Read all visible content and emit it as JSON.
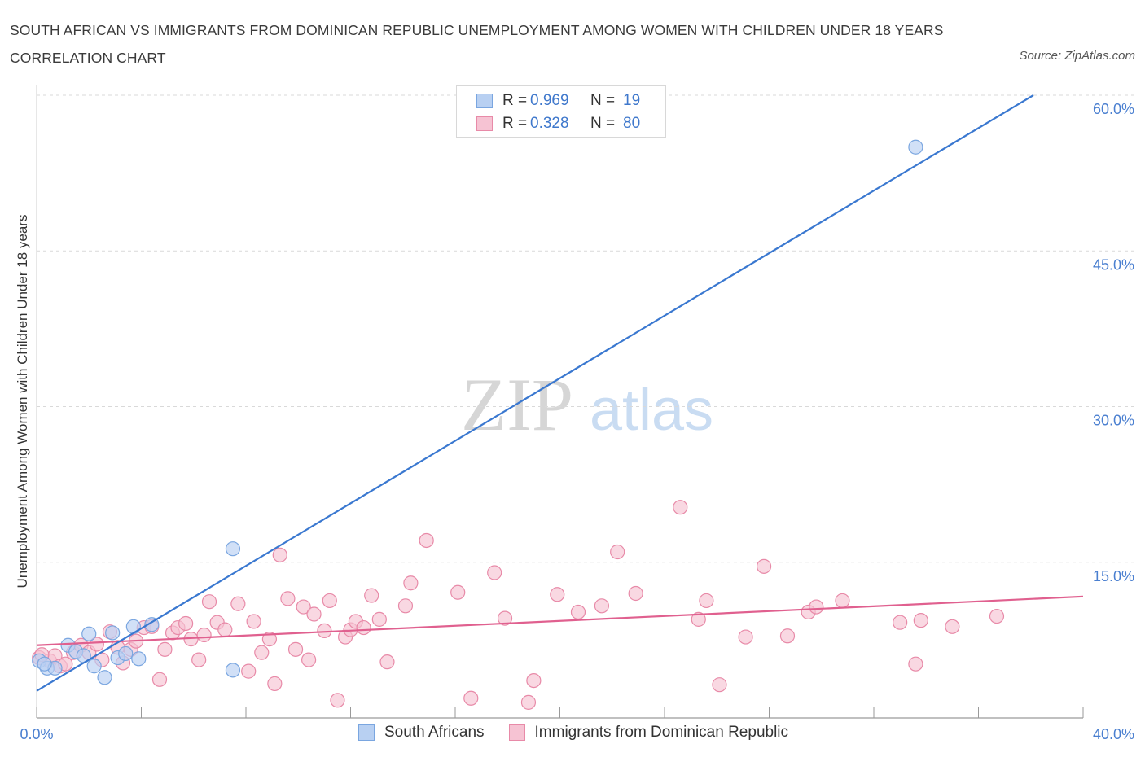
{
  "title": "SOUTH AFRICAN VS IMMIGRANTS FROM DOMINICAN REPUBLIC UNEMPLOYMENT AMONG WOMEN WITH CHILDREN UNDER 18 YEARS CORRELATION CHART",
  "source": "Source: ZipAtlas.com",
  "watermark": {
    "zip": "ZIP",
    "atlas": "atlas"
  },
  "legend": {
    "rows": [
      {
        "r_label": "R =",
        "r_value": "0.969",
        "n_label": "N =",
        "n_value": "19"
      },
      {
        "r_label": "R =",
        "r_value": "0.328",
        "n_label": "N =",
        "n_value": "80"
      }
    ]
  },
  "colors": {
    "blue_fill": "#b8d0f2",
    "blue_stroke": "#7aa6e0",
    "blue_line": "#3a78d0",
    "pink_fill": "#f6c3d3",
    "pink_stroke": "#e88aa8",
    "pink_line": "#e0608f",
    "grid": "#d9d9d9",
    "axis_text": "#4a7fd0"
  },
  "chart_data": {
    "type": "scatter",
    "title": "SOUTH AFRICAN VS IMMIGRANTS FROM DOMINICAN REPUBLIC UNEMPLOYMENT AMONG WOMEN WITH CHILDREN UNDER 18 YEARS CORRELATION CHART",
    "xlabel": "",
    "ylabel": "Unemployment Among Women with Children Under 18 years",
    "xlim": [
      0,
      40
    ],
    "ylim": [
      0,
      60
    ],
    "x_tick_labels": [
      "0.0%",
      "40.0%"
    ],
    "y_tick_labels": [
      "15.0%",
      "30.0%",
      "45.0%",
      "60.0%"
    ],
    "y_ticks": [
      15,
      30,
      45,
      60
    ],
    "x_ticks": [
      0,
      4,
      8,
      12,
      16,
      20,
      24,
      28,
      32,
      36,
      40
    ],
    "grid": true,
    "legend_position": "top-center",
    "series": [
      {
        "name": "South Africans",
        "color": "#b8d0f2",
        "points": [
          [
            0.1,
            5.5
          ],
          [
            0.4,
            4.8
          ],
          [
            0.7,
            4.8
          ],
          [
            1.2,
            7.0
          ],
          [
            1.5,
            6.4
          ],
          [
            1.8,
            6.0
          ],
          [
            2.0,
            8.1
          ],
          [
            2.2,
            5.0
          ],
          [
            2.6,
            3.9
          ],
          [
            2.9,
            8.2
          ],
          [
            3.1,
            5.8
          ],
          [
            3.4,
            6.2
          ],
          [
            3.7,
            8.8
          ],
          [
            3.9,
            5.7
          ],
          [
            4.4,
            9.0
          ],
          [
            7.5,
            16.3
          ],
          [
            7.5,
            4.6
          ],
          [
            33.6,
            55.0
          ],
          [
            0.3,
            5.2
          ]
        ],
        "trend": {
          "x": [
            0,
            38.1
          ],
          "y": [
            2.6,
            60.0
          ]
        }
      },
      {
        "name": "Immigrants from Dominican Republic",
        "color": "#f6c3d3",
        "points": [
          [
            0.1,
            5.8
          ],
          [
            0.5,
            5.5
          ],
          [
            0.7,
            6.0
          ],
          [
            0.9,
            5.0
          ],
          [
            1.1,
            5.2
          ],
          [
            1.4,
            6.3
          ],
          [
            1.7,
            7.0
          ],
          [
            2.0,
            6.3
          ],
          [
            2.3,
            7.1
          ],
          [
            2.5,
            5.6
          ],
          [
            2.8,
            8.3
          ],
          [
            3.1,
            6.8
          ],
          [
            3.3,
            5.3
          ],
          [
            3.6,
            6.6
          ],
          [
            3.8,
            7.4
          ],
          [
            4.1,
            8.7
          ],
          [
            4.4,
            8.8
          ],
          [
            4.7,
            3.7
          ],
          [
            4.9,
            6.6
          ],
          [
            5.2,
            8.2
          ],
          [
            5.4,
            8.7
          ],
          [
            5.7,
            9.1
          ],
          [
            5.9,
            7.6
          ],
          [
            6.2,
            5.6
          ],
          [
            6.4,
            8.0
          ],
          [
            6.6,
            11.2
          ],
          [
            6.9,
            9.2
          ],
          [
            7.2,
            8.5
          ],
          [
            7.7,
            11.0
          ],
          [
            8.1,
            4.5
          ],
          [
            8.3,
            9.3
          ],
          [
            8.6,
            6.3
          ],
          [
            8.9,
            7.6
          ],
          [
            9.1,
            3.3
          ],
          [
            9.3,
            15.7
          ],
          [
            9.6,
            11.5
          ],
          [
            9.9,
            6.6
          ],
          [
            10.2,
            10.7
          ],
          [
            10.4,
            5.6
          ],
          [
            10.6,
            10.0
          ],
          [
            11.0,
            8.4
          ],
          [
            11.2,
            11.3
          ],
          [
            11.5,
            1.7
          ],
          [
            11.8,
            7.8
          ],
          [
            12.0,
            8.5
          ],
          [
            12.2,
            9.3
          ],
          [
            12.5,
            8.7
          ],
          [
            12.8,
            11.8
          ],
          [
            13.1,
            9.5
          ],
          [
            13.4,
            5.4
          ],
          [
            14.1,
            10.8
          ],
          [
            14.3,
            13.0
          ],
          [
            14.9,
            17.1
          ],
          [
            16.1,
            12.1
          ],
          [
            16.6,
            1.9
          ],
          [
            17.5,
            14.0
          ],
          [
            17.9,
            9.6
          ],
          [
            18.8,
            1.5
          ],
          [
            19.0,
            3.6
          ],
          [
            19.9,
            11.9
          ],
          [
            20.7,
            10.2
          ],
          [
            21.6,
            10.8
          ],
          [
            22.2,
            16.0
          ],
          [
            22.9,
            12.0
          ],
          [
            24.6,
            20.3
          ],
          [
            25.3,
            9.5
          ],
          [
            25.6,
            11.3
          ],
          [
            26.1,
            3.2
          ],
          [
            27.1,
            7.8
          ],
          [
            27.8,
            14.6
          ],
          [
            28.7,
            7.9
          ],
          [
            29.5,
            10.2
          ],
          [
            29.8,
            10.7
          ],
          [
            30.8,
            11.3
          ],
          [
            33.0,
            9.2
          ],
          [
            33.6,
            5.2
          ],
          [
            33.8,
            9.4
          ],
          [
            35.0,
            8.8
          ],
          [
            36.7,
            9.8
          ],
          [
            0.2,
            6.1
          ]
        ],
        "trend": {
          "x": [
            0,
            40
          ],
          "y": [
            7.0,
            11.7
          ]
        }
      }
    ]
  },
  "bottom_legend": [
    {
      "label": "South Africans"
    },
    {
      "label": "Immigrants from Dominican Republic"
    }
  ]
}
